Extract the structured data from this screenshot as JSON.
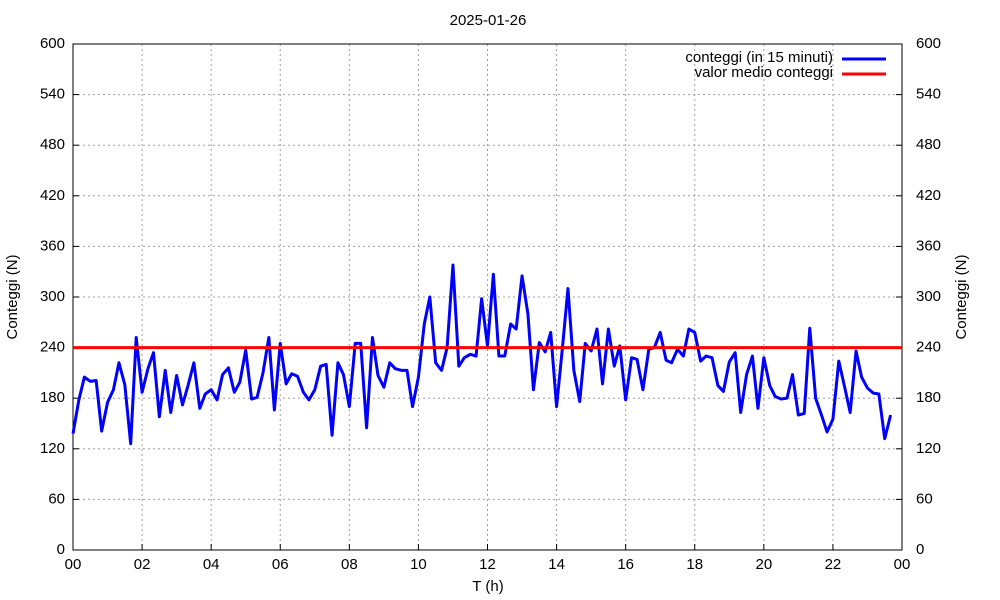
{
  "chart_data": {
    "type": "line",
    "title": "2025-01-26",
    "xlabel": "T (h)",
    "ylabel": "Conteggi (N)",
    "y2label": "Conteggi (N)",
    "x": [
      0,
      0.17,
      0.33,
      0.5,
      0.67,
      0.83,
      1,
      1.17,
      1.33,
      1.5,
      1.67,
      1.83,
      2,
      2.17,
      2.33,
      2.5,
      2.67,
      2.83,
      3,
      3.17,
      3.33,
      3.5,
      3.67,
      3.83,
      4,
      4.17,
      4.33,
      4.5,
      4.67,
      4.83,
      5,
      5.17,
      5.33,
      5.5,
      5.67,
      5.83,
      6,
      6.17,
      6.33,
      6.5,
      6.67,
      6.83,
      7,
      7.17,
      7.33,
      7.5,
      7.67,
      7.83,
      8,
      8.17,
      8.33,
      8.5,
      8.67,
      8.83,
      9,
      9.17,
      9.33,
      9.5,
      9.67,
      9.83,
      10,
      10.17,
      10.33,
      10.5,
      10.67,
      10.83,
      11,
      11.17,
      11.33,
      11.5,
      11.67,
      11.83,
      12,
      12.17,
      12.33,
      12.5,
      12.67,
      12.83,
      13,
      13.17,
      13.33,
      13.5,
      13.67,
      13.83,
      14,
      14.17,
      14.33,
      14.5,
      14.67,
      14.83,
      15,
      15.17,
      15.33,
      15.5,
      15.67,
      15.83,
      16,
      16.17,
      16.33,
      16.5,
      16.67,
      16.83,
      17,
      17.17,
      17.33,
      17.5,
      17.67,
      17.83,
      18,
      18.17,
      18.33,
      18.5,
      18.67,
      18.83,
      19,
      19.17,
      19.33,
      19.5,
      19.67,
      19.83,
      20,
      20.17,
      20.33,
      20.5,
      20.67,
      20.83,
      21,
      21.17,
      21.33,
      21.5,
      21.67,
      21.83,
      22,
      22.17,
      22.33,
      22.5,
      22.67,
      22.83,
      23,
      23.17,
      23.33,
      23.5,
      23.67
    ],
    "series": [
      {
        "name": "conteggi (in 15 minuti)",
        "color": "#0000ff",
        "values": [
          138,
          178,
          205,
          200,
          201,
          141,
          175,
          190,
          222,
          196,
          126,
          252,
          187,
          215,
          234,
          158,
          213,
          163,
          207,
          172,
          195,
          222,
          168,
          185,
          190,
          178,
          208,
          216,
          187,
          199,
          237,
          179,
          181,
          210,
          252,
          166,
          245,
          197,
          209,
          206,
          187,
          178,
          190,
          218,
          220,
          136,
          222,
          208,
          170,
          245,
          245,
          145,
          252,
          207,
          193,
          222,
          215,
          213,
          213,
          170,
          205,
          268,
          300,
          222,
          213,
          240,
          338,
          218,
          228,
          232,
          230,
          298,
          242,
          327,
          230,
          230,
          268,
          262,
          325,
          280,
          190,
          246,
          235,
          258,
          170,
          240,
          310,
          213,
          176,
          245,
          236,
          262,
          197,
          262,
          218,
          242,
          178,
          228,
          226,
          190,
          238,
          240,
          258,
          225,
          222,
          238,
          230,
          262,
          258,
          224,
          230,
          228,
          195,
          188,
          223,
          234,
          163,
          208,
          230,
          168,
          228,
          195,
          182,
          179,
          180,
          208,
          160,
          162,
          263,
          180,
          160,
          140,
          155,
          224,
          195,
          163,
          236,
          205,
          192,
          186,
          185,
          132,
          160
        ]
      }
    ],
    "mean_line": {
      "name": "valor medio conteggi",
      "color": "#ff0000",
      "value": 240
    },
    "xlim": [
      0,
      24
    ],
    "xticks": [
      {
        "value": 0,
        "label": "00"
      },
      {
        "value": 2,
        "label": "02"
      },
      {
        "value": 4,
        "label": "04"
      },
      {
        "value": 6,
        "label": "06"
      },
      {
        "value": 8,
        "label": "08"
      },
      10,
      12,
      14,
      16,
      18,
      20,
      22,
      {
        "value": 24,
        "label": "00"
      }
    ],
    "ylim": [
      0,
      600
    ],
    "yticks": [
      0,
      60,
      120,
      180,
      240,
      300,
      360,
      420,
      480,
      540,
      600
    ],
    "y2lim": [
      0,
      600
    ],
    "y2ticks": [
      0,
      60,
      120,
      180,
      240,
      300,
      360,
      420,
      480,
      540,
      600
    ],
    "grid": true,
    "legend": "top-right"
  }
}
